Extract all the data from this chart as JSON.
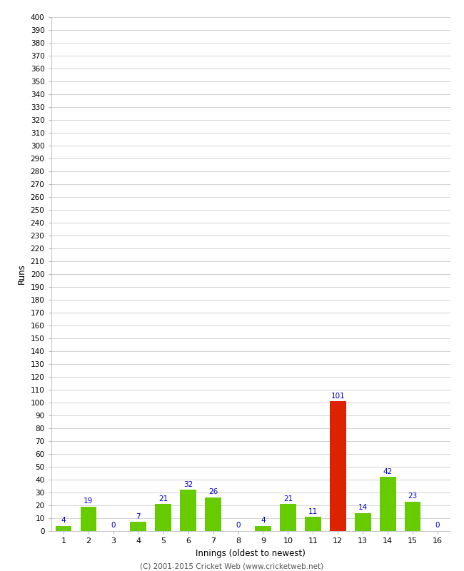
{
  "innings": [
    1,
    2,
    3,
    4,
    5,
    6,
    7,
    8,
    9,
    10,
    11,
    12,
    13,
    14,
    15,
    16
  ],
  "runs": [
    4,
    19,
    0,
    7,
    21,
    32,
    26,
    0,
    4,
    21,
    11,
    101,
    14,
    42,
    23,
    0
  ],
  "bar_colors": [
    "#66cc00",
    "#66cc00",
    "#66cc00",
    "#66cc00",
    "#66cc00",
    "#66cc00",
    "#66cc00",
    "#66cc00",
    "#66cc00",
    "#66cc00",
    "#66cc00",
    "#dd2200",
    "#66cc00",
    "#66cc00",
    "#66cc00",
    "#66cc00"
  ],
  "xlabel": "Innings (oldest to newest)",
  "ylabel": "Runs",
  "ylim": [
    0,
    400
  ],
  "ytick_step": 10,
  "label_color": "#0000cc",
  "grid_color": "#cccccc",
  "plot_bg_color": "#ffffff",
  "fig_bg_color": "#ffffff",
  "footer": "(C) 2001-2015 Cricket Web (www.cricketweb.net)",
  "bar_width": 0.65
}
